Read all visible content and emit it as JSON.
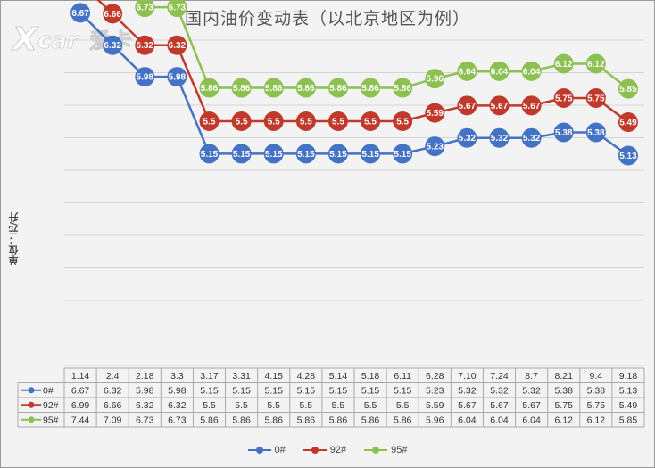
{
  "chart_data": {
    "type": "line",
    "title": "国内油价变动表（以北京地区为例）",
    "ylabel": "单位：元/升",
    "categories": [
      "1.14",
      "2.4",
      "2.18",
      "3.3",
      "3.17",
      "3.31",
      "4.15",
      "4.28",
      "5.14",
      "5.18",
      "6.11",
      "6.28",
      "7.10",
      "7.24",
      "8.7",
      "8.21",
      "9.4",
      "9.18"
    ],
    "series": [
      {
        "name": "0#",
        "color": "#4472c4",
        "values": [
          6.67,
          6.32,
          5.98,
          5.98,
          5.15,
          5.15,
          5.15,
          5.15,
          5.15,
          5.15,
          5.15,
          5.23,
          5.32,
          5.32,
          5.32,
          5.38,
          5.38,
          5.13
        ]
      },
      {
        "name": "92#",
        "color": "#c0392b",
        "values": [
          6.99,
          6.66,
          6.32,
          6.32,
          5.5,
          5.5,
          5.5,
          5.5,
          5.5,
          5.5,
          5.5,
          5.59,
          5.67,
          5.67,
          5.67,
          5.75,
          5.75,
          5.49
        ]
      },
      {
        "name": "95#",
        "color": "#8cc152",
        "values": [
          7.44,
          7.09,
          6.73,
          6.73,
          5.86,
          5.86,
          5.86,
          5.86,
          5.86,
          5.86,
          5.86,
          5.96,
          6.04,
          6.04,
          6.04,
          6.12,
          6.12,
          5.85
        ]
      }
    ],
    "data_table": true,
    "legend_position": "bottom",
    "grid": true
  },
  "logo_text": "Xcar爱卡"
}
